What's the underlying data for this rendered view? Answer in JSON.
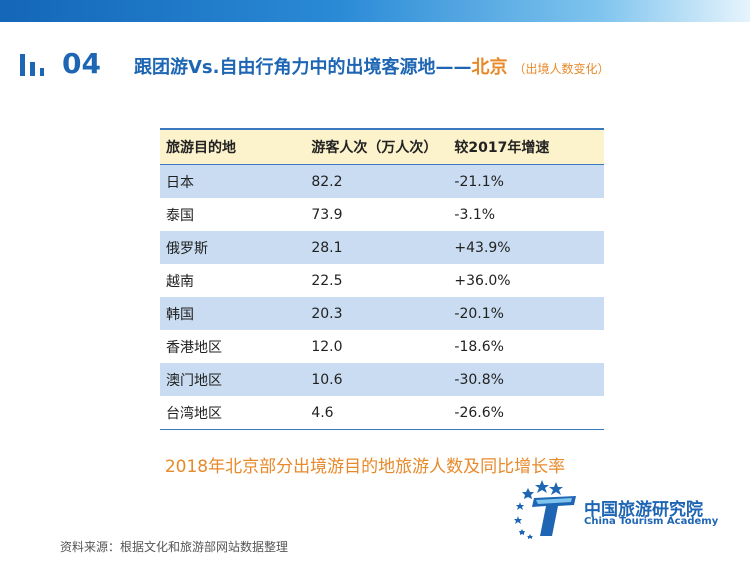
{
  "header": {
    "section_number": "04",
    "title_main": "跟团游Vs.自由行角力中的出境客源地——",
    "title_city": "北京",
    "title_sub": "（出境人数变化）"
  },
  "table": {
    "headers": [
      "旅游目的地",
      "游客人次（万人次）",
      "较2017年增速"
    ],
    "rows": [
      [
        "日本",
        "82.2",
        "-21.1%"
      ],
      [
        "泰国",
        "73.9",
        "-3.1%"
      ],
      [
        "俄罗斯",
        "28.1",
        "+43.9%"
      ],
      [
        "越南",
        "22.5",
        "+36.0%"
      ],
      [
        "韩国",
        "20.3",
        "-20.1%"
      ],
      [
        "香港地区",
        "12.0",
        "-18.6%"
      ],
      [
        "澳门地区",
        "10.6",
        "-30.8%"
      ],
      [
        "台湾地区",
        "4.6",
        "-26.6%"
      ]
    ]
  },
  "caption": "2018年北京部分出境游目的地旅游人数及同比增长率",
  "source": "资料来源：根据文化和旅游部网站数据整理",
  "logo": {
    "name_cn": "中国旅游研究院",
    "name_en": "China Tourism Academy"
  },
  "colors": {
    "brand_blue": "#1e66b3",
    "accent_orange": "#e8892a",
    "table_header_bg": "#fcf3cc",
    "row_shade": "#c9dcf1"
  },
  "icons": {
    "section": "bar-chart-icon",
    "logo": "stars-t-logo-icon"
  }
}
